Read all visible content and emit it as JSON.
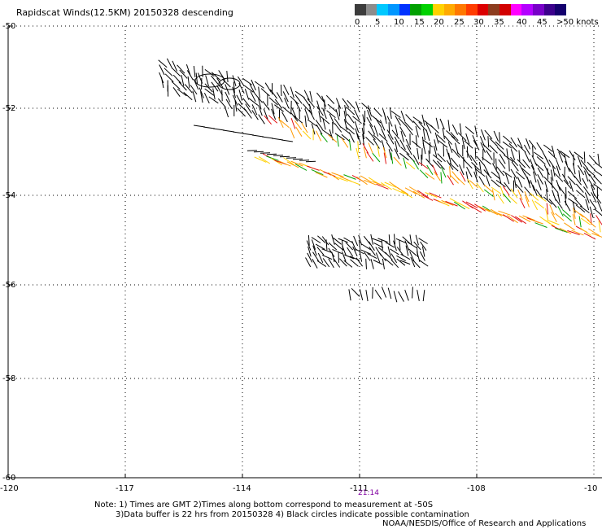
{
  "title": "Rapidscat Winds(12.5KM) 20150328 descending",
  "legend": {
    "colors": [
      "#3c3c3c",
      "#8c8c8c",
      "#00c8ff",
      "#0096ff",
      "#0032ff",
      "#00a000",
      "#00d200",
      "#ffd200",
      "#ffaa00",
      "#ff7800",
      "#ff3c00",
      "#dc0000",
      "#8c3c1e",
      "#d20000",
      "#ff00ff",
      "#b400ff",
      "#7800c8",
      "#3c008c",
      "#14006e"
    ],
    "labels": [
      "0",
      "5",
      "10",
      "15",
      "20",
      "25",
      "30",
      "35",
      "40",
      "45",
      ">50 knots"
    ]
  },
  "axes": {
    "x_ticks": [
      "-120",
      "-117",
      "-114",
      "-111",
      "-108",
      "-10"
    ],
    "y_ticks": [
      "-50",
      "-52",
      "-54",
      "-56",
      "-58",
      "-60"
    ]
  },
  "time_label": "21:14",
  "notes": {
    "line1": "Note: 1) Times are GMT 2)Times along bottom correspond to measurement at -50S",
    "line2": "3)Data buffer is 22 hrs from 20150328 4) Black circles indicate possible contamination",
    "line3": "NOAA/NESDIS/Office of Research and Applications"
  },
  "wind_colors": {
    "black": "#000000",
    "orange": "#ff9a00",
    "red": "#e01010",
    "yellow": "#ffd000",
    "green": "#00a000"
  }
}
